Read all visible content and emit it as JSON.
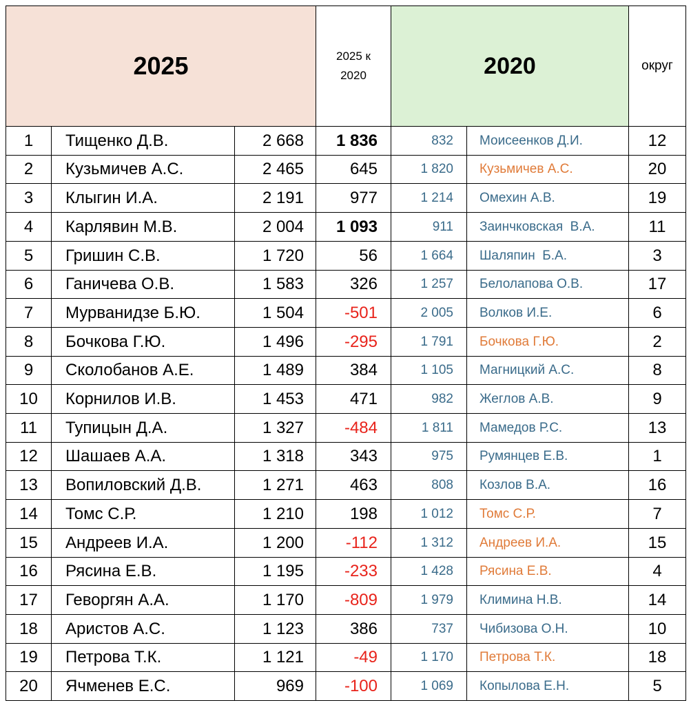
{
  "header": {
    "title_2025": "2025",
    "diff": "2025 к 2020",
    "title_2020": "2020",
    "district": "округ"
  },
  "rows": [
    [
      "1",
      "Тищенко Д.В.",
      "2 668",
      "1 836",
      "832",
      "Моисеенков Д.И.",
      "12"
    ],
    [
      "2",
      "Кузьмичев А.С.",
      "2 465",
      "645",
      "1 820",
      "Кузьмичев А.С.",
      "20"
    ],
    [
      "3",
      "Клыгин И.А.",
      "2 191",
      "977",
      "1 214",
      "Омехин А.В.",
      "19"
    ],
    [
      "4",
      "Карлявин М.В.",
      "2 004",
      "1 093",
      "911",
      "Заинчковская  В.А.",
      "11"
    ],
    [
      "5",
      "Гришин С.В.",
      "1 720",
      "56",
      "1 664",
      "Шаляпин  Б.А.",
      "3"
    ],
    [
      "6",
      "Ганичева О.В.",
      "1 583",
      "326",
      "1 257",
      "Белолапова О.В.",
      "17"
    ],
    [
      "7",
      "Мурванидзе Б.Ю.",
      "1 504",
      "-501",
      "2 005",
      "Волков И.Е.",
      "6"
    ],
    [
      "8",
      "Бочкова Г.Ю.",
      "1 496",
      "-295",
      "1 791",
      "Бочкова Г.Ю.",
      "2"
    ],
    [
      "9",
      "Сколобанов А.Е.",
      "1 489",
      "384",
      "1 105",
      "Магницкий А.С.",
      "8"
    ],
    [
      "10",
      "Корнилов И.В.",
      "1 453",
      "471",
      "982",
      "Жеглов А.В.",
      "9"
    ],
    [
      "11",
      "Тупицын Д.А.",
      "1 327",
      "-484",
      "1 811",
      "Мамедов Р.С.",
      "13"
    ],
    [
      "12",
      "Шашаев А.А.",
      "1 318",
      "343",
      "975",
      "Румянцев Е.В.",
      "1"
    ],
    [
      "13",
      "Вопиловский Д.В.",
      "1 271",
      "463",
      "808",
      "Козлов В.А.",
      "16"
    ],
    [
      "14",
      "Томс С.Р.",
      "1 210",
      "198",
      "1 012",
      "Томс С.Р.",
      "7"
    ],
    [
      "15",
      "Андреев И.А.",
      "1 200",
      "-112",
      "1 312",
      "Андреев И.А.",
      "15"
    ],
    [
      "16",
      "Рясина Е.В.",
      "1 195",
      "-233",
      "1 428",
      "Рясина Е.В.",
      "4"
    ],
    [
      "17",
      "Геворгян А.А.",
      "1 170",
      "-809",
      "1 979",
      "Климина Н.В.",
      "14"
    ],
    [
      "18",
      "Аристов А.С.",
      "1 123",
      "386",
      "737",
      "Чибизова О.Н.",
      "10"
    ],
    [
      "19",
      "Петрова Т.К.",
      "1 121",
      "-49",
      "1 170",
      "Петрова Т.К.",
      "18"
    ],
    [
      "20",
      "Ячменев Е.С.",
      "969",
      "-100",
      "1 069",
      "Копылова Е.Н.",
      "5"
    ]
  ]
}
